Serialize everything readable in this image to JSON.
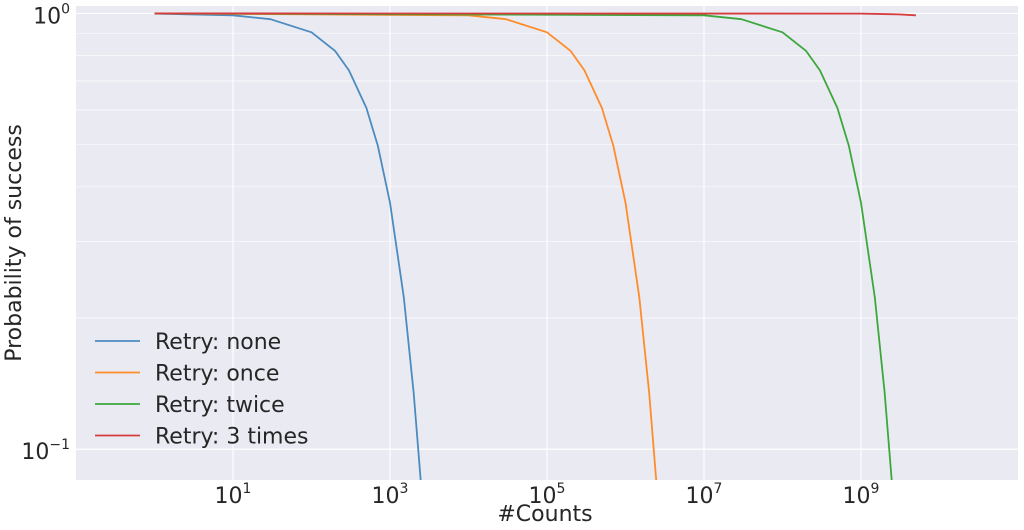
{
  "chart_data": {
    "type": "line",
    "title": "",
    "xlabel": "#Counts",
    "ylabel": "Probability of success",
    "x_scale": "log",
    "y_scale": "log",
    "xlim": [
      0.1,
      100000000000
    ],
    "ylim": [
      0.085,
      1.04
    ],
    "x_ticks": [
      {
        "value": 10,
        "base": "10",
        "exp": "1"
      },
      {
        "value": 1000,
        "base": "10",
        "exp": "3"
      },
      {
        "value": 100000,
        "base": "10",
        "exp": "5"
      },
      {
        "value": 10000000,
        "base": "10",
        "exp": "7"
      },
      {
        "value": 1000000000,
        "base": "10",
        "exp": "9"
      }
    ],
    "y_ticks": [
      {
        "value": 1,
        "base": "10",
        "exp": "0"
      },
      {
        "value": 0.1,
        "base": "10",
        "exp": "−1"
      }
    ],
    "grid": true,
    "legend_position": "lower-left",
    "background": "#EAEAF2",
    "series": [
      {
        "name": "Retry: none",
        "color": "#4c8bbf",
        "base_count": 1000,
        "x": [
          1,
          10,
          30,
          100,
          200,
          300,
          500,
          700,
          1000,
          1500,
          2000,
          2500
        ],
        "y": [
          0.999,
          0.99,
          0.97,
          0.905,
          0.82,
          0.74,
          0.607,
          0.497,
          0.368,
          0.223,
          0.135,
          0.082
        ]
      },
      {
        "name": "Retry: once",
        "color": "#ff8c28",
        "base_count": 1000000,
        "x": [
          1,
          10000,
          30000,
          100000,
          200000,
          300000,
          500000,
          700000,
          1000000,
          1500000,
          2000000,
          2500000
        ],
        "y": [
          1.0,
          0.99,
          0.97,
          0.905,
          0.82,
          0.74,
          0.607,
          0.497,
          0.368,
          0.223,
          0.135,
          0.082
        ]
      },
      {
        "name": "Retry: twice",
        "color": "#3ca83c",
        "base_count": 1000000000,
        "x": [
          1,
          10000000,
          30000000,
          100000000,
          200000000,
          300000000,
          500000000,
          700000000,
          1000000000,
          1500000000,
          2000000000,
          2500000000
        ],
        "y": [
          1.0,
          0.99,
          0.97,
          0.905,
          0.82,
          0.74,
          0.607,
          0.497,
          0.368,
          0.223,
          0.135,
          0.082
        ]
      },
      {
        "name": "Retry: 3 times",
        "color": "#d63c3c",
        "x": [
          1,
          1000000000,
          3000000000,
          5000000000
        ],
        "y": [
          1.0,
          0.999,
          0.995,
          0.99
        ]
      }
    ]
  }
}
